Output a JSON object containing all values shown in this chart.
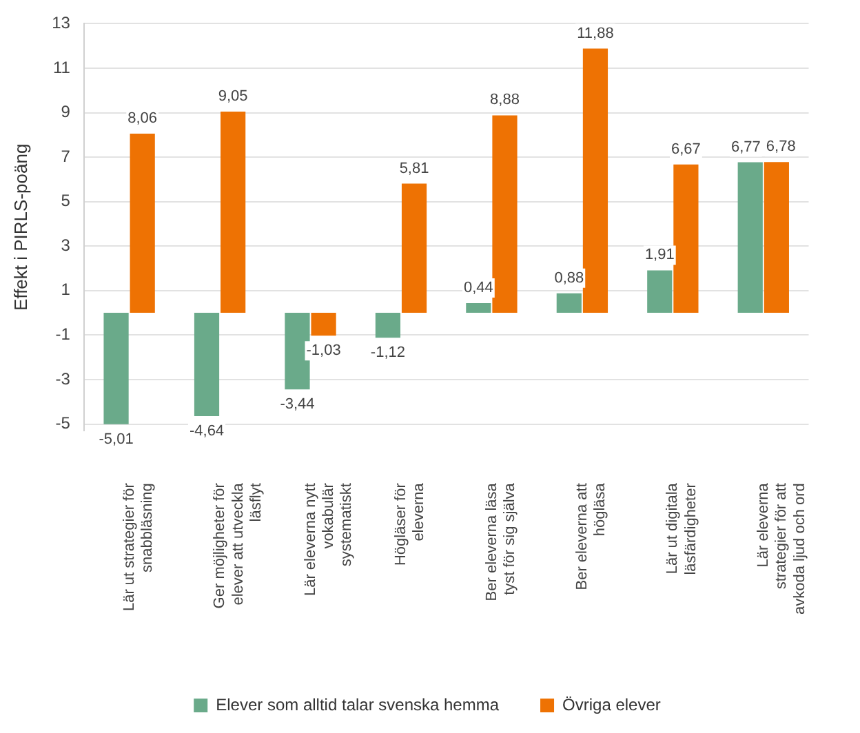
{
  "chart_data": {
    "type": "bar",
    "ylabel": "Effekt i PIRLS-poäng",
    "categories": [
      "Lär ut strategier för\nsnabbläsning",
      "Ger möjligheter för\nelever att utveckla\nläsflyt",
      "Lär eleverna nytt\nvokabulär\nsystematiskt",
      "Högläser för\neleverna",
      "Ber eleverna läsa\ntyst för sig själva",
      "Ber eleverna att\nhögläsa",
      "Lär ut digitala\nläsfärdigheter",
      "Lär eleverna\nstrategier för att\navkoda ljud och ord"
    ],
    "series": [
      {
        "name": "Elever som alltid talar svenska hemma",
        "color": "#6aaa8a",
        "values": [
          -5.01,
          -4.64,
          -3.44,
          -1.12,
          0.44,
          0.88,
          1.91,
          6.77
        ],
        "value_labels": [
          "-5,01",
          "-4,64",
          "-3,44",
          "-1,12",
          "0,44",
          "0,88",
          "1,91",
          "6,77"
        ]
      },
      {
        "name": "Övriga elever",
        "color": "#ee7203",
        "values": [
          8.06,
          9.05,
          -1.03,
          5.81,
          8.88,
          11.88,
          6.67,
          6.78
        ],
        "value_labels": [
          "8,06",
          "9,05",
          "-1,03",
          "5,81",
          "8,88",
          "11,88",
          "6,67",
          "6,78"
        ]
      }
    ],
    "ylim": [
      -5.3,
      13
    ],
    "yticks": [
      -5,
      -3,
      -1,
      1,
      3,
      5,
      7,
      9,
      11,
      13
    ],
    "grid": "y",
    "legend": "bottom"
  }
}
